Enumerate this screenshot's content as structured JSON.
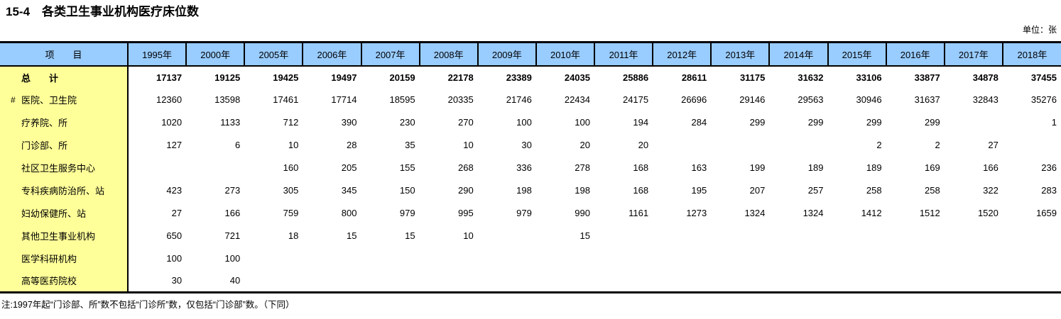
{
  "page": {
    "title": "15-4　各类卫生事业机构医疗床位数",
    "unit_label": "单位：张",
    "note": "注:1997年起“门诊部、所”数不包括“门诊所”数，仅包括“门诊部”数。（下同）"
  },
  "colors": {
    "header_bg": "#99CCFF",
    "item_col_bg": "#FFFF99",
    "border": "#000000"
  },
  "table": {
    "header": {
      "item_label": "项　　目",
      "years": [
        "1995年",
        "2000年",
        "2005年",
        "2006年",
        "2007年",
        "2008年",
        "2009年",
        "2010年",
        "2011年",
        "2012年",
        "2013年",
        "2014年",
        "2015年",
        "2016年",
        "2017年",
        "2018年"
      ]
    },
    "rows": [
      {
        "label": "总　　计",
        "prefix": "",
        "bold": true,
        "values": [
          "17137",
          "19125",
          "19425",
          "19497",
          "20159",
          "22178",
          "23389",
          "24035",
          "25886",
          "28611",
          "31175",
          "31632",
          "33106",
          "33877",
          "34878",
          "37455"
        ]
      },
      {
        "label": "医院、卫生院",
        "prefix": "#",
        "bold": false,
        "values": [
          "12360",
          "13598",
          "17461",
          "17714",
          "18595",
          "20335",
          "21746",
          "22434",
          "24175",
          "26696",
          "29146",
          "29563",
          "30946",
          "31637",
          "32843",
          "35276"
        ]
      },
      {
        "label": "疗养院、所",
        "prefix": "",
        "bold": false,
        "values": [
          "1020",
          "1133",
          "712",
          "390",
          "230",
          "270",
          "100",
          "100",
          "194",
          "284",
          "299",
          "299",
          "299",
          "299",
          "",
          "1"
        ]
      },
      {
        "label": "门诊部、所",
        "prefix": "",
        "bold": false,
        "values": [
          "127",
          "6",
          "10",
          "28",
          "35",
          "10",
          "30",
          "20",
          "20",
          "",
          "",
          "",
          "2",
          "2",
          "27",
          ""
        ]
      },
      {
        "label": "社区卫生服务中心",
        "prefix": "",
        "bold": false,
        "values": [
          "",
          "",
          "160",
          "205",
          "155",
          "268",
          "336",
          "278",
          "168",
          "163",
          "199",
          "189",
          "189",
          "169",
          "166",
          "236"
        ]
      },
      {
        "label": "专科疾病防治所、站",
        "prefix": "",
        "bold": false,
        "values": [
          "423",
          "273",
          "305",
          "345",
          "150",
          "290",
          "198",
          "198",
          "168",
          "195",
          "207",
          "257",
          "258",
          "258",
          "322",
          "283"
        ]
      },
      {
        "label": "妇幼保健所、站",
        "prefix": "",
        "bold": false,
        "values": [
          "27",
          "166",
          "759",
          "800",
          "979",
          "995",
          "979",
          "990",
          "1161",
          "1273",
          "1324",
          "1324",
          "1412",
          "1512",
          "1520",
          "1659"
        ]
      },
      {
        "label": "其他卫生事业机构",
        "prefix": "",
        "bold": false,
        "values": [
          "650",
          "721",
          "18",
          "15",
          "15",
          "10",
          "",
          "15",
          "",
          "",
          "",
          "",
          "",
          "",
          "",
          ""
        ]
      },
      {
        "label": "医学科研机构",
        "prefix": "",
        "bold": false,
        "values": [
          "100",
          "100",
          "",
          "",
          "",
          "",
          "",
          "",
          "",
          "",
          "",
          "",
          "",
          "",
          "",
          ""
        ]
      },
      {
        "label": "高等医药院校",
        "prefix": "",
        "bold": false,
        "values": [
          "30",
          "40",
          "",
          "",
          "",
          "",
          "",
          "",
          "",
          "",
          "",
          "",
          "",
          "",
          "",
          ""
        ]
      }
    ]
  }
}
